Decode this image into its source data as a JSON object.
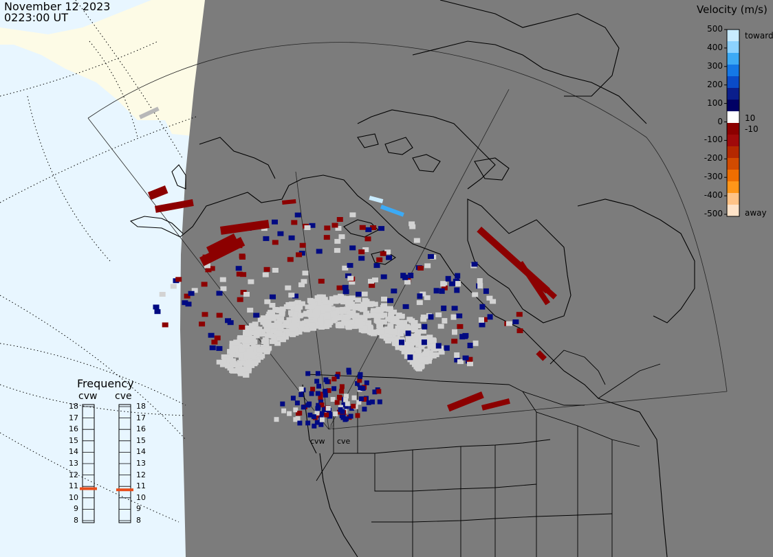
{
  "header": {
    "date": "November 12 2023",
    "time": "0223:00 UT"
  },
  "colorbar": {
    "title": "Velocity (m/s)",
    "ticks": [
      "500",
      "400",
      "300",
      "200",
      "100",
      "0",
      "-100",
      "-200",
      "-300",
      "-400",
      "-500"
    ],
    "label_pos": "10",
    "label_neg": "-10",
    "toward_label": "toward",
    "away_label": "away",
    "colors": [
      "#c8ebff",
      "#8cd2ff",
      "#3caaf5",
      "#1478e6",
      "#0a4bc8",
      "#0a1e8c",
      "#000064",
      "#ffffff",
      "#8c0000",
      "#a00a0a",
      "#b42800",
      "#d24b00",
      "#f06e00",
      "#ff9619",
      "#ffc387",
      "#ffe3c8"
    ]
  },
  "frequency": {
    "title": "Frequency",
    "radars": [
      {
        "name": "cvw",
        "value_mhz": 10.8
      },
      {
        "name": "cve",
        "value_mhz": 10.7
      }
    ],
    "ticks": [
      "18",
      "17",
      "16",
      "15",
      "14",
      "13",
      "12",
      "11",
      "10",
      "9",
      "8"
    ],
    "marker_color": "#e84d1a"
  },
  "map": {
    "background_color": "#7c7c7c",
    "ocean_color": "#e8f6ff",
    "land_color": "#fdfbe6",
    "ground_scatter_color": "#d3d3d3",
    "sites": [
      {
        "label": "cvw"
      },
      {
        "label": "cve"
      }
    ]
  }
}
